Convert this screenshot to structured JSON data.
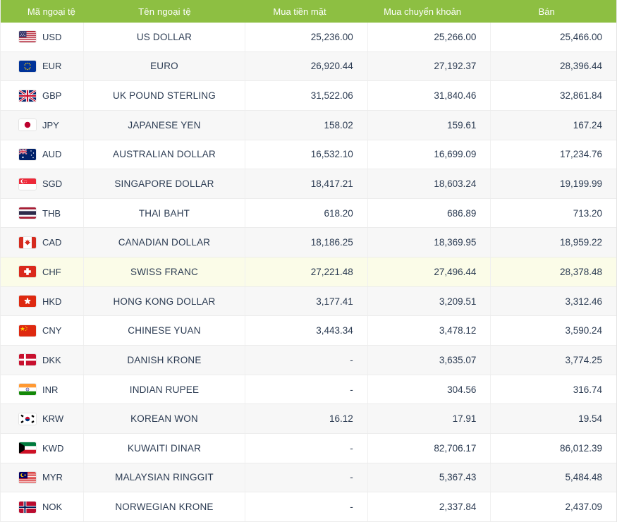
{
  "colors": {
    "header_bg": "#8dbf42",
    "header_text": "#ffffff",
    "text": "#2b3b52",
    "row_alt": "#f7f7f7",
    "row_highlight": "#fbfce8",
    "grid_line": "#ececec"
  },
  "table": {
    "headers": [
      "Mã ngoại tệ",
      "Tên ngoại tệ",
      "Mua tiền mặt",
      "Mua chuyển khoản",
      "Bán"
    ],
    "rows": [
      {
        "code": "USD",
        "flag": "us",
        "name": "US DOLLAR",
        "cash": "25,236.00",
        "transfer": "25,266.00",
        "sell": "25,466.00",
        "highlight": false
      },
      {
        "code": "EUR",
        "flag": "eu",
        "name": "EURO",
        "cash": "26,920.44",
        "transfer": "27,192.37",
        "sell": "28,396.44",
        "highlight": false
      },
      {
        "code": "GBP",
        "flag": "gb",
        "name": "UK POUND STERLING",
        "cash": "31,522.06",
        "transfer": "31,840.46",
        "sell": "32,861.84",
        "highlight": false
      },
      {
        "code": "JPY",
        "flag": "jp",
        "name": "JAPANESE YEN",
        "cash": "158.02",
        "transfer": "159.61",
        "sell": "167.24",
        "highlight": false
      },
      {
        "code": "AUD",
        "flag": "au",
        "name": "AUSTRALIAN DOLLAR",
        "cash": "16,532.10",
        "transfer": "16,699.09",
        "sell": "17,234.76",
        "highlight": false
      },
      {
        "code": "SGD",
        "flag": "sg",
        "name": "SINGAPORE DOLLAR",
        "cash": "18,417.21",
        "transfer": "18,603.24",
        "sell": "19,199.99",
        "highlight": false
      },
      {
        "code": "THB",
        "flag": "th",
        "name": "THAI BAHT",
        "cash": "618.20",
        "transfer": "686.89",
        "sell": "713.20",
        "highlight": false
      },
      {
        "code": "CAD",
        "flag": "ca",
        "name": "CANADIAN DOLLAR",
        "cash": "18,186.25",
        "transfer": "18,369.95",
        "sell": "18,959.22",
        "highlight": false
      },
      {
        "code": "CHF",
        "flag": "ch",
        "name": "SWISS FRANC",
        "cash": "27,221.48",
        "transfer": "27,496.44",
        "sell": "28,378.48",
        "highlight": true
      },
      {
        "code": "HKD",
        "flag": "hk",
        "name": "HONG KONG DOLLAR",
        "cash": "3,177.41",
        "transfer": "3,209.51",
        "sell": "3,312.46",
        "highlight": false
      },
      {
        "code": "CNY",
        "flag": "cn",
        "name": "CHINESE YUAN",
        "cash": "3,443.34",
        "transfer": "3,478.12",
        "sell": "3,590.24",
        "highlight": false
      },
      {
        "code": "DKK",
        "flag": "dk",
        "name": "DANISH KRONE",
        "cash": "-",
        "transfer": "3,635.07",
        "sell": "3,774.25",
        "highlight": false
      },
      {
        "code": "INR",
        "flag": "in",
        "name": "INDIAN RUPEE",
        "cash": "-",
        "transfer": "304.56",
        "sell": "316.74",
        "highlight": false
      },
      {
        "code": "KRW",
        "flag": "kr",
        "name": "KOREAN WON",
        "cash": "16.12",
        "transfer": "17.91",
        "sell": "19.54",
        "highlight": false
      },
      {
        "code": "KWD",
        "flag": "kw",
        "name": "KUWAITI DINAR",
        "cash": "-",
        "transfer": "82,706.17",
        "sell": "86,012.39",
        "highlight": false
      },
      {
        "code": "MYR",
        "flag": "my",
        "name": "MALAYSIAN RINGGIT",
        "cash": "-",
        "transfer": "5,367.43",
        "sell": "5,484.48",
        "highlight": false
      },
      {
        "code": "NOK",
        "flag": "no",
        "name": "NORWEGIAN KRONE",
        "cash": "-",
        "transfer": "2,337.84",
        "sell": "2,437.09",
        "highlight": false
      }
    ]
  }
}
